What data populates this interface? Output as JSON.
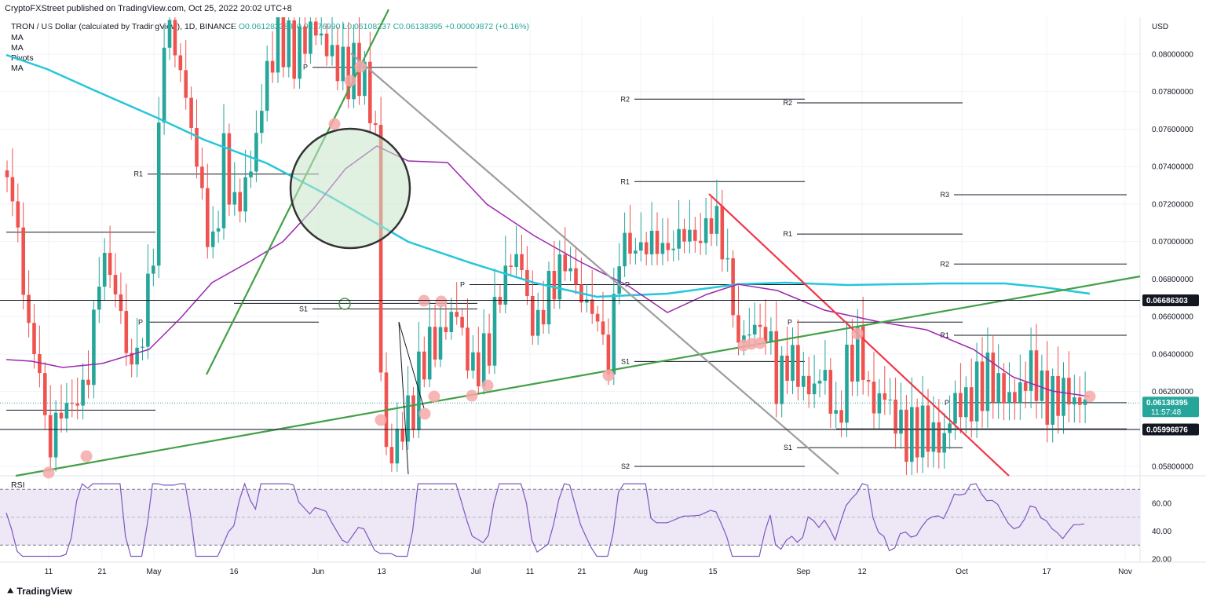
{
  "header": {
    "publisher": "CryptoFXStreet published on TradingView.com, Oct 25, 2022 20:02 UTC+8",
    "symbol": "TRON / US Dollar (calculated by TradingView), 1D, BINANCE",
    "ohlc": "O0.06128238 H0.06176990 L0.06108237 C0.06138395 +0.00009872 (+0.16%)",
    "indicators": [
      "MA",
      "MA",
      "Pivots",
      "MA"
    ]
  },
  "footer": {
    "brand": "TradingView",
    "logo": "tradingview-logo-icon"
  },
  "rsi_label": "RSI",
  "colors": {
    "up": "#26a69a",
    "down": "#ef5350",
    "ma_long": "#26c6da",
    "ma_short": "#9c27b0",
    "trend_green": "#43a047",
    "trend_red": "#f23645",
    "trend_gray": "#9e9e9e",
    "marker": "#f7a8a8",
    "rsi_band": "#ede7f6",
    "rsi_line": "#7e57c2"
  },
  "chart_data": {
    "type": "candlestick",
    "currency": "USD",
    "x_ticks": [
      "11",
      "21",
      "May",
      "16",
      "Jun",
      "13",
      "Jul",
      "11",
      "21",
      "Aug",
      "15",
      "Sep",
      "12",
      "Oct",
      "17",
      "Nov"
    ],
    "y_ticks": [
      "0.05800000",
      "0.06000000",
      "0.06200000",
      "0.06400000",
      "0.06600000",
      "0.06800000",
      "0.07000000",
      "0.07200000",
      "0.07400000",
      "0.07600000",
      "0.07800000",
      "0.08000000"
    ],
    "ylim": [
      0.0575,
      0.0825
    ],
    "price_labels": [
      {
        "value": 0.06686303,
        "text": "0.06686303",
        "style": "dark"
      },
      {
        "value": 0.06138395,
        "text": "0.06138395",
        "countdown": "11:57:48",
        "style": "teal"
      },
      {
        "value": 0.05996876,
        "text": "0.05996876",
        "style": "dark"
      }
    ],
    "last_close": 0.06138395,
    "pivot_levels": [
      {
        "label": "P",
        "value": 0.0793,
        "x0": 398,
        "x1": 608
      },
      {
        "label": "R1",
        "value": 0.0736,
        "x0": 188,
        "x1": 406
      },
      {
        "label": "",
        "value": 0.0705,
        "x0": 8,
        "x1": 198
      },
      {
        "label": "P",
        "value": 0.0657,
        "x0": 188,
        "x1": 406
      },
      {
        "label": "S1",
        "value": 0.0664,
        "x0": 398,
        "x1": 608
      },
      {
        "label": "",
        "value": 0.0667,
        "x0": 298,
        "x1": 608
      },
      {
        "label": "",
        "value": 0.061,
        "x0": 8,
        "x1": 198
      },
      {
        "label": "R2",
        "value": 0.0776,
        "x0": 808,
        "x1": 1025
      },
      {
        "label": "R1",
        "value": 0.0732,
        "x0": 808,
        "x1": 1025
      },
      {
        "label": "P",
        "value": 0.0677,
        "x0": 598,
        "x1": 808
      },
      {
        "label": "P",
        "value": 0.0677,
        "x0": 808,
        "x1": 1025
      },
      {
        "label": "S1",
        "value": 0.0636,
        "x0": 808,
        "x1": 1025
      },
      {
        "label": "S2",
        "value": 0.058,
        "x0": 808,
        "x1": 1025
      },
      {
        "label": "R2",
        "value": 0.0774,
        "x0": 1015,
        "x1": 1226
      },
      {
        "label": "R1",
        "value": 0.0704,
        "x0": 1015,
        "x1": 1226
      },
      {
        "label": "P",
        "value": 0.0657,
        "x0": 1015,
        "x1": 1226
      },
      {
        "label": "S1",
        "value": 0.059,
        "x0": 1015,
        "x1": 1226
      },
      {
        "label": "R3",
        "value": 0.0725,
        "x0": 1215,
        "x1": 1435
      },
      {
        "label": "R2",
        "value": 0.0688,
        "x0": 1215,
        "x1": 1435
      },
      {
        "label": "R1",
        "value": 0.065,
        "x0": 1215,
        "x1": 1435
      },
      {
        "label": "P",
        "value": 0.0614,
        "x0": 1215,
        "x1": 1435
      },
      {
        "label": "",
        "value": 0.06,
        "x0": 1065,
        "x1": 1435
      }
    ],
    "rsi": {
      "y_ticks": [
        "20.00",
        "40.00",
        "60.00"
      ],
      "ylim": [
        15,
        78
      ],
      "band": [
        30,
        70
      ],
      "midline": 50
    }
  }
}
